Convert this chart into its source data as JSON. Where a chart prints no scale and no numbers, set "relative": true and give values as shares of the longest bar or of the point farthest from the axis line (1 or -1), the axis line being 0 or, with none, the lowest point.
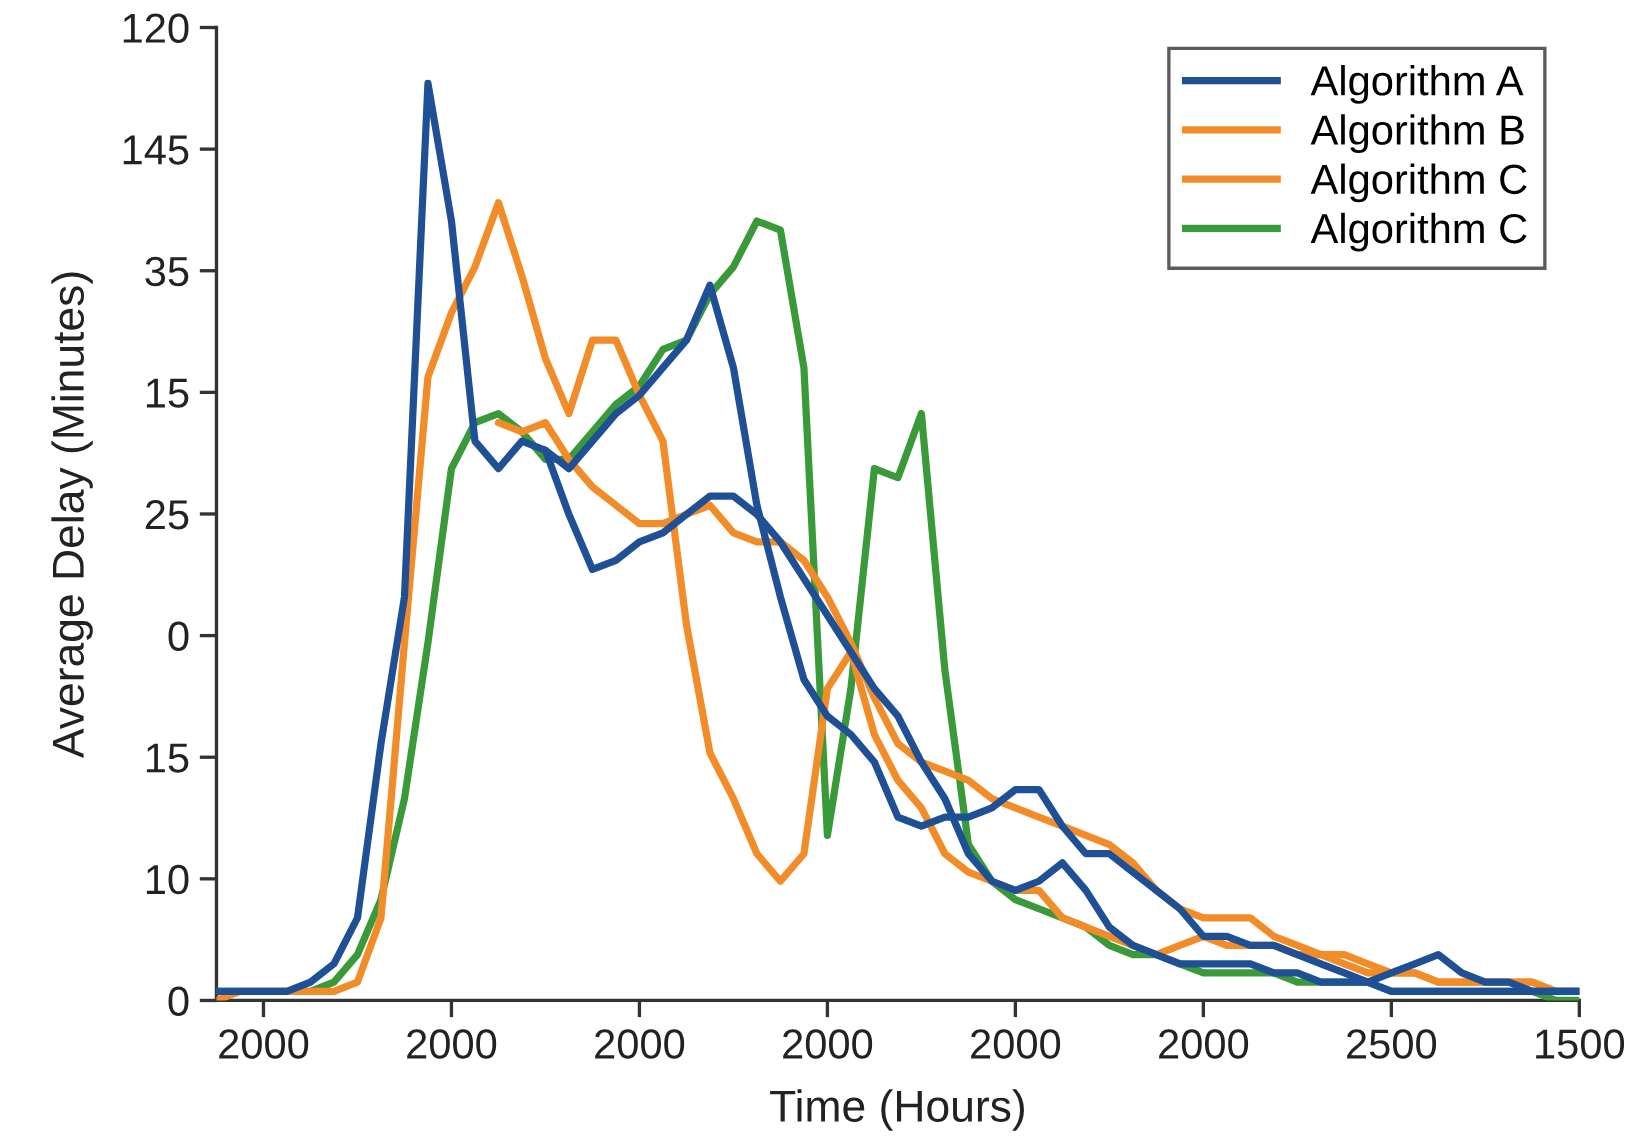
{
  "chart_data": {
    "type": "line",
    "xlabel": "Time (Hours)",
    "ylabel": "Average Delay (Minutes)",
    "relative": true,
    "annotations": [
      "0",
      "10",
      "15",
      "0",
      "25",
      "15",
      "35",
      "145",
      "120"
    ],
    "categories": [
      null,
      null,
      "2000",
      null,
      null,
      null,
      null,
      null,
      null,
      null,
      "2000",
      null,
      null,
      null,
      null,
      null,
      null,
      null,
      "2000",
      null,
      null,
      null,
      null,
      null,
      null,
      null,
      "2000",
      null,
      null,
      null,
      null,
      null,
      null,
      null,
      "2000",
      null,
      null,
      null,
      null,
      null,
      null,
      null,
      "2000",
      null,
      null,
      null,
      null,
      null,
      null,
      null,
      "2500",
      null,
      null,
      null,
      null,
      null,
      null,
      null,
      "1500"
    ],
    "legend": "top right",
    "line_style": "solid",
    "series": [
      {
        "name": "Algorithm A",
        "color": "#1f5096",
        "values": [
          0.01,
          0.01,
          0.01,
          0.01,
          0.02,
          0.04,
          0.09,
          0.28,
          0.44,
          1,
          0.85,
          0.61,
          0.58,
          0.61,
          0.6,
          0.53,
          0.47,
          0.48,
          0.5,
          0.51,
          0.53,
          0.55,
          0.55,
          0.53,
          0.5,
          0.46,
          0.42,
          0.38,
          0.34,
          0.31,
          0.26,
          0.22,
          0.16,
          0.13,
          0.12,
          0.13,
          0.15,
          0.12,
          0.08,
          0.06,
          0.05,
          0.04,
          0.04,
          0.04,
          0.04,
          0.03,
          0.03,
          0.02,
          0.02,
          0.02,
          0.01,
          0.01,
          0.01,
          0.01,
          0.01,
          0.01,
          0.01,
          0.01,
          0.01
        ]
      },
      {
        "color": "#1f5096",
        "values": [
          null,
          null,
          null,
          null,
          null,
          null,
          null,
          null,
          null,
          null,
          null,
          null,
          null,
          null,
          0.6,
          0.58,
          0.61,
          0.64,
          0.66,
          0.69,
          0.72,
          0.78,
          0.69,
          0.54,
          0.44,
          0.35,
          0.31,
          0.29,
          0.26,
          0.2,
          0.19,
          0.2,
          0.2,
          0.21,
          0.23,
          0.23,
          0.19,
          0.16,
          0.16,
          0.14,
          0.12,
          0.1,
          0.07,
          0.07,
          0.06,
          0.06,
          0.05,
          0.04,
          0.03,
          0.02,
          0.03,
          0.04,
          0.05,
          0.03,
          0.02,
          0.02,
          0.01,
          0.01,
          0.01
        ]
      },
      {
        "name": "Algorithm B",
        "color": "#f28c28",
        "values": [
          0,
          0.01,
          0.01,
          0.01,
          0.01,
          0.01,
          0.02,
          0.09,
          0.39,
          0.68,
          0.75,
          0.8,
          0.87,
          0.79,
          0.7,
          0.64,
          0.72,
          0.72,
          0.66,
          0.61,
          0.41,
          0.27,
          0.22,
          0.16,
          0.13,
          0.16,
          0.34,
          0.38,
          0.29,
          0.24,
          0.21,
          0.16,
          0.14,
          0.13,
          0.12,
          0.12,
          0.09,
          0.08,
          0.07,
          0.06,
          0.05,
          0.06,
          0.07,
          0.06,
          0.06,
          0.06,
          0.05,
          0.05,
          0.04,
          0.03,
          0.03,
          0.03,
          0.02,
          0.02,
          0.02,
          0.02,
          0.02,
          0.01,
          0.01
        ]
      },
      {
        "name": "Algorithm C",
        "color": "#f28c28",
        "values": [
          null,
          null,
          null,
          null,
          null,
          null,
          null,
          null,
          null,
          null,
          null,
          null,
          0.63,
          0.62,
          0.63,
          0.59,
          0.56,
          0.54,
          0.52,
          0.52,
          0.53,
          0.54,
          0.51,
          0.5,
          0.5,
          0.48,
          0.44,
          0.39,
          0.33,
          0.28,
          0.26,
          0.25,
          0.24,
          0.22,
          0.21,
          0.2,
          0.19,
          0.18,
          0.17,
          0.15,
          0.12,
          0.1,
          0.09,
          0.09,
          0.09,
          0.07,
          0.06,
          0.05,
          0.05,
          0.04,
          0.03,
          0.03,
          0.02,
          0.02,
          0.02,
          0.02,
          0.02,
          0.01,
          0.01
        ]
      },
      {
        "name": "Algorithm C",
        "color": "#3a9a3a",
        "values": [
          0.01,
          0.01,
          0.01,
          0.01,
          0.01,
          0.02,
          0.05,
          0.11,
          0.22,
          0.39,
          0.58,
          0.63,
          0.64,
          0.62,
          0.59,
          0.59,
          0.62,
          0.65,
          0.67,
          0.71,
          0.72,
          0.77,
          0.8,
          0.85,
          0.84,
          0.69,
          0.18,
          0.34,
          0.58,
          0.57,
          0.64,
          0.36,
          0.17,
          0.13,
          0.11,
          0.1,
          0.09,
          0.08,
          0.06,
          0.05,
          0.05,
          0.04,
          0.03,
          0.03,
          0.03,
          0.03,
          0.02,
          0.02,
          0.02,
          0.02,
          0.01,
          0.01,
          0.01,
          0.01,
          0.01,
          0.01,
          0.01,
          0,
          0
        ]
      }
    ]
  }
}
